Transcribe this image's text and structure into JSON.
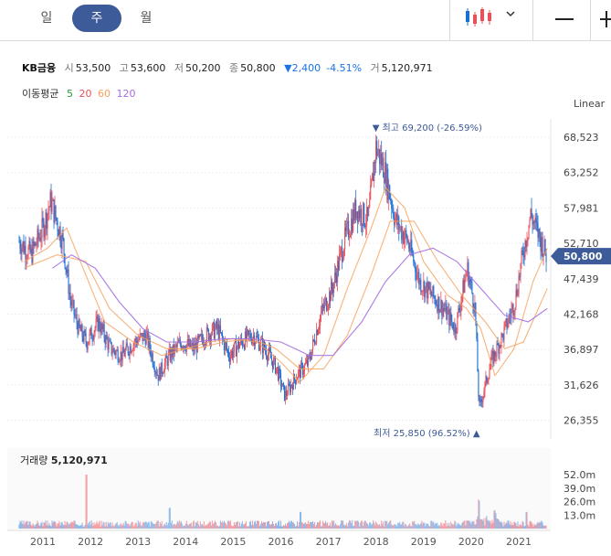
{
  "tabs": [
    {
      "label": "일",
      "active": false
    },
    {
      "label": "주",
      "active": true
    },
    {
      "label": "월",
      "active": false
    }
  ],
  "toolbar": {
    "chart_type_icon": "candlestick-icon",
    "chevron_icon": "chevron-down-icon",
    "zoom_out_icon": "minus-icon",
    "zoom_in_icon": "plus-icon"
  },
  "quote": {
    "name": "KB금융",
    "open_label": "시",
    "open": "53,500",
    "high_label": "고",
    "high": "53,600",
    "low_label": "저",
    "low": "50,200",
    "close_label": "종",
    "close": "50,800",
    "change": "▼2,400",
    "change_pct": "-4.51%",
    "volume_label": "거",
    "volume": "5,120,971"
  },
  "moving_average": {
    "label": "이동평균",
    "periods": [
      "5",
      "20",
      "60",
      "120"
    ]
  },
  "scale_mode": "Linear",
  "colors": {
    "up": "#e8505b",
    "down": "#1a6fd6",
    "ma5": "#2e9e3e",
    "ma20": "#e8505b",
    "ma60": "#f5a05a",
    "ma120": "#a56ee0",
    "accent": "#3d5a99"
  },
  "chart_data": {
    "type": "candlestick",
    "interval": "weekly",
    "x_axis_labels": [
      "2011",
      "2012",
      "2013",
      "2014",
      "2015",
      "2016",
      "2017",
      "2018",
      "2019",
      "2020",
      "2021"
    ],
    "y_ticks": [
      68523,
      63252,
      57981,
      52710,
      47439,
      42168,
      36897,
      31626,
      26355
    ],
    "ylim": [
      25000,
      72000
    ],
    "current_price": 50800,
    "current_price_label": "50,800",
    "max_marker": {
      "label": "최고 69,200 (-26.59%)",
      "value": 69200,
      "date": "2018"
    },
    "min_marker": {
      "label": "최저 25,850 (96.52%)",
      "value": 25850,
      "date": "2020"
    },
    "close_path": [
      [
        "2010-07",
        53000
      ],
      [
        "2010-10",
        51000
      ],
      [
        "2011-01",
        55000
      ],
      [
        "2011-03",
        59000
      ],
      [
        "2011-06",
        53000
      ],
      [
        "2011-08",
        44000
      ],
      [
        "2011-10",
        40000
      ],
      [
        "2011-12",
        38000
      ],
      [
        "2012-03",
        41000
      ],
      [
        "2012-06",
        37000
      ],
      [
        "2012-09",
        36000
      ],
      [
        "2012-12",
        38000
      ],
      [
        "2013-03",
        39000
      ],
      [
        "2013-06",
        33000
      ],
      [
        "2013-09",
        36000
      ],
      [
        "2013-12",
        38000
      ],
      [
        "2014-03",
        37000
      ],
      [
        "2014-06",
        39000
      ],
      [
        "2014-09",
        40000
      ],
      [
        "2014-12",
        36000
      ],
      [
        "2015-03",
        38000
      ],
      [
        "2015-06",
        39000
      ],
      [
        "2015-09",
        37000
      ],
      [
        "2015-12",
        34000
      ],
      [
        "2016-02",
        30000
      ],
      [
        "2016-05",
        33000
      ],
      [
        "2016-08",
        35000
      ],
      [
        "2016-11",
        42000
      ],
      [
        "2017-02",
        46000
      ],
      [
        "2017-05",
        53000
      ],
      [
        "2017-08",
        58000
      ],
      [
        "2017-11",
        56000
      ],
      [
        "2018-01",
        67000
      ],
      [
        "2018-03",
        64000
      ],
      [
        "2018-06",
        56000
      ],
      [
        "2018-09",
        53000
      ],
      [
        "2018-12",
        47000
      ],
      [
        "2019-03",
        45000
      ],
      [
        "2019-06",
        43000
      ],
      [
        "2019-09",
        40000
      ],
      [
        "2019-12",
        49000
      ],
      [
        "2020-02",
        43000
      ],
      [
        "2020-03",
        28000
      ],
      [
        "2020-06",
        35000
      ],
      [
        "2020-09",
        39000
      ],
      [
        "2020-12",
        44000
      ],
      [
        "2021-02",
        51000
      ],
      [
        "2021-04",
        57000
      ],
      [
        "2021-06",
        54000
      ],
      [
        "2021-08",
        50800
      ]
    ],
    "moving_averages": {
      "ma20": [
        [
          2010.6,
          50000
        ],
        [
          2011.1,
          52000
        ],
        [
          2011.5,
          55000
        ],
        [
          2011.9,
          48000
        ],
        [
          2012.3,
          41000
        ],
        [
          2012.9,
          38000
        ],
        [
          2013.5,
          36000
        ],
        [
          2014.0,
          37000
        ],
        [
          2014.5,
          38000
        ],
        [
          2015.0,
          38500
        ],
        [
          2015.5,
          38000
        ],
        [
          2016.0,
          35000
        ],
        [
          2016.4,
          32000
        ],
        [
          2016.9,
          36000
        ],
        [
          2017.4,
          46000
        ],
        [
          2017.9,
          55000
        ],
        [
          2018.2,
          61000
        ],
        [
          2018.6,
          58000
        ],
        [
          2019.0,
          50000
        ],
        [
          2019.5,
          45000
        ],
        [
          2019.9,
          43000
        ],
        [
          2020.2,
          40000
        ],
        [
          2020.5,
          33000
        ],
        [
          2020.9,
          37000
        ],
        [
          2021.3,
          47000
        ],
        [
          2021.6,
          52000
        ]
      ],
      "ma60": [
        [
          2010.6,
          49000
        ],
        [
          2011.3,
          51000
        ],
        [
          2011.9,
          50000
        ],
        [
          2012.4,
          43000
        ],
        [
          2013.0,
          39000
        ],
        [
          2013.6,
          37000
        ],
        [
          2014.2,
          37000
        ],
        [
          2014.8,
          38000
        ],
        [
          2015.4,
          38500
        ],
        [
          2015.9,
          37000
        ],
        [
          2016.4,
          34000
        ],
        [
          2016.9,
          34000
        ],
        [
          2017.4,
          39000
        ],
        [
          2017.9,
          48000
        ],
        [
          2018.3,
          56000
        ],
        [
          2018.8,
          56000
        ],
        [
          2019.3,
          50000
        ],
        [
          2019.8,
          45000
        ],
        [
          2020.3,
          41000
        ],
        [
          2020.7,
          37000
        ],
        [
          2021.1,
          38000
        ],
        [
          2021.6,
          46000
        ]
      ],
      "ma120": [
        [
          2011.2,
          49000
        ],
        [
          2011.6,
          51000
        ],
        [
          2012.1,
          49000
        ],
        [
          2012.6,
          44000
        ],
        [
          2013.1,
          40000
        ],
        [
          2013.6,
          38000
        ],
        [
          2014.2,
          38000
        ],
        [
          2014.8,
          38500
        ],
        [
          2015.4,
          38500
        ],
        [
          2016.0,
          38000
        ],
        [
          2016.6,
          36000
        ],
        [
          2017.1,
          36000
        ],
        [
          2017.7,
          41000
        ],
        [
          2018.2,
          47000
        ],
        [
          2018.7,
          51000
        ],
        [
          2019.2,
          52000
        ],
        [
          2019.7,
          50000
        ],
        [
          2020.2,
          46000
        ],
        [
          2020.7,
          42000
        ],
        [
          2021.2,
          41000
        ],
        [
          2021.6,
          43000
        ]
      ]
    },
    "volume": {
      "label": "거래량",
      "value_label": "5,120,971",
      "y_ticks": [
        "52.0m",
        "39.0m",
        "26.0m",
        "13.0m"
      ],
      "ylim_m": [
        0,
        60
      ],
      "notable_spikes": [
        [
          "2011-12",
          52
        ],
        [
          "2013-09",
          20
        ],
        [
          "2016-06",
          16
        ],
        [
          "2020-03",
          24
        ],
        [
          "2020-07",
          14
        ],
        [
          "2021-03",
          16
        ]
      ]
    }
  }
}
